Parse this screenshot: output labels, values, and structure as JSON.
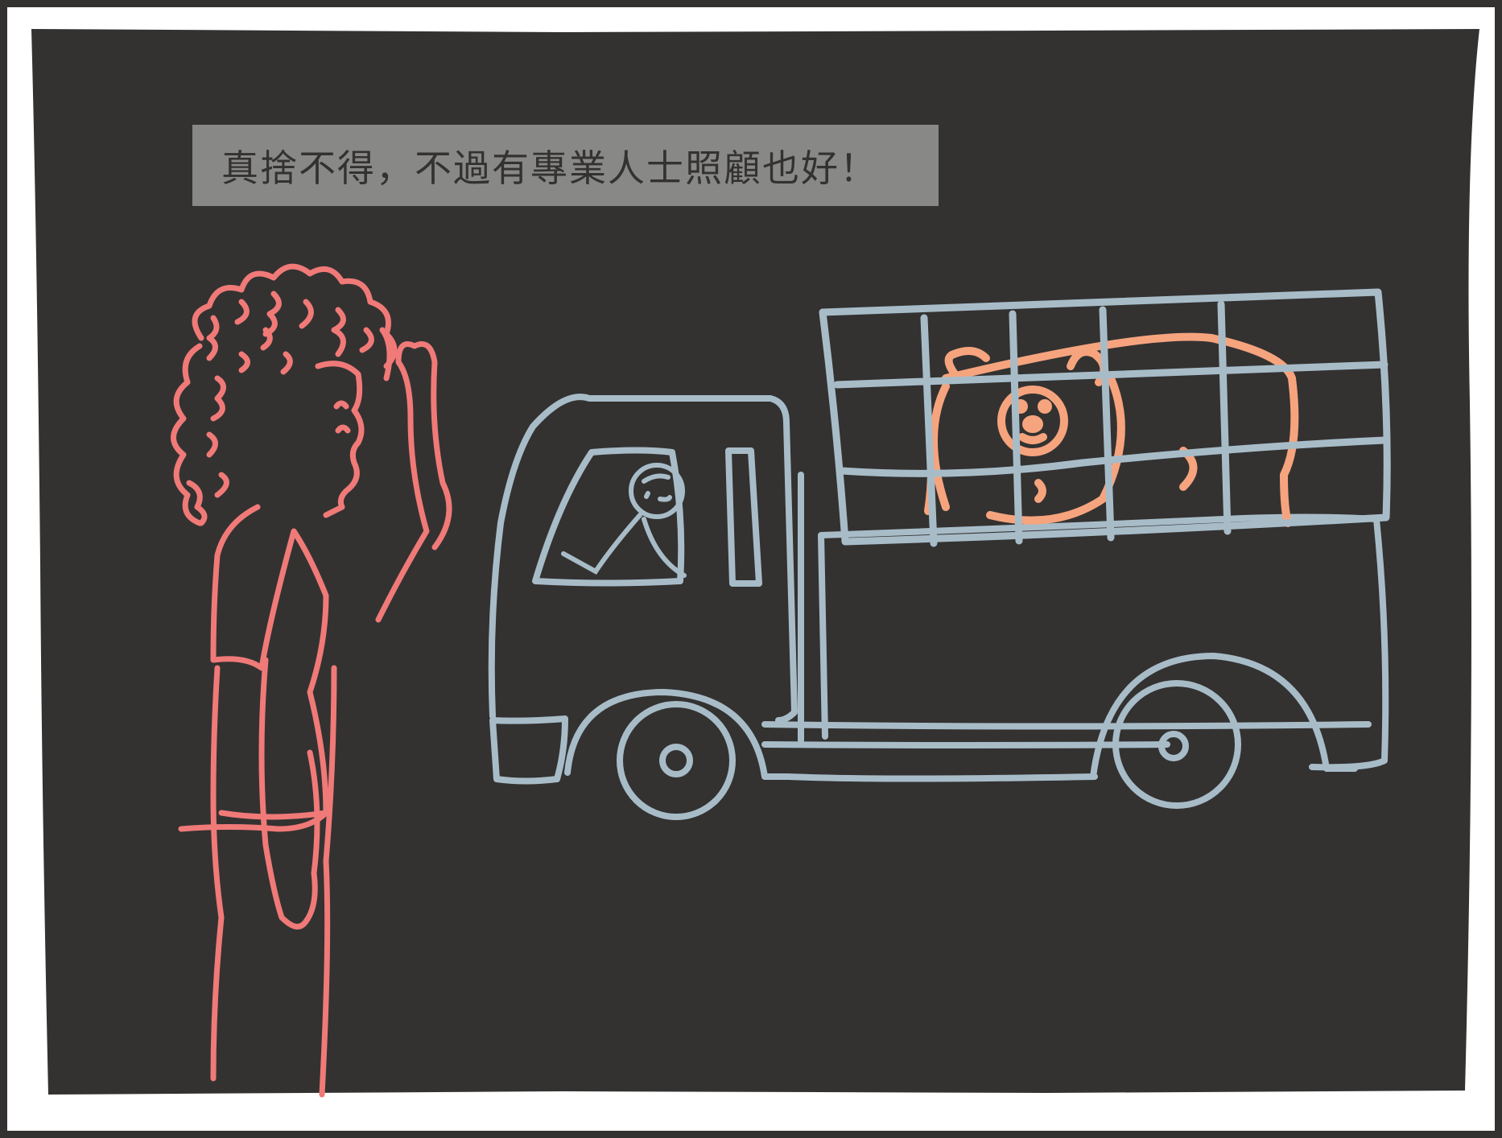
{
  "caption": {
    "text": "真捨不得，不過有專業人士照顧也好！"
  },
  "colors": {
    "background": "#333231",
    "frame": "#ffffff",
    "caption_box": "#888887",
    "caption_text": "#333231",
    "person": "#f07a78",
    "truck": "#a8bcc8",
    "bear": "#f6a47e"
  },
  "illustration": {
    "figures": [
      "person-waving",
      "truck",
      "driver",
      "cage",
      "bear"
    ]
  }
}
